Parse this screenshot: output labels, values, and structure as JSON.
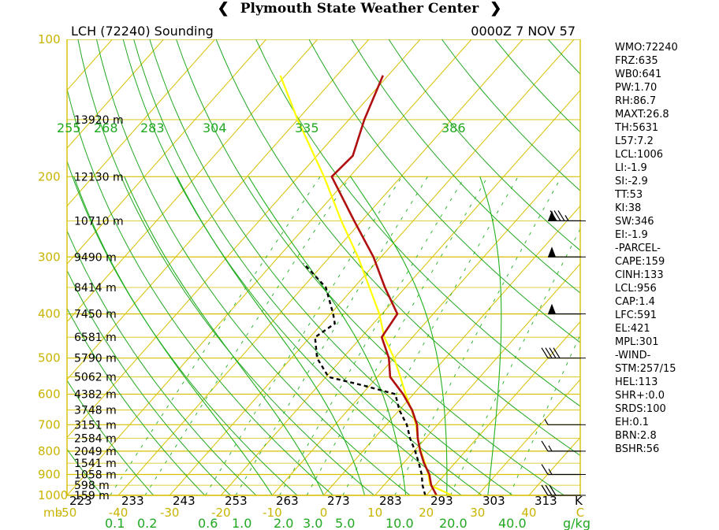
{
  "header": {
    "title": "Plymouth State Weather Center"
  },
  "plot": {
    "station": "LCH (72240) Sounding",
    "time": "0000Z  7 NOV 57",
    "theta_labels": [
      "255",
      "268",
      "283",
      "304",
      "335",
      "386"
    ],
    "pressure_unit": "mb",
    "theta_unit": "K",
    "mixing_unit": "g/kg",
    "mixing_labels": [
      "0.1",
      "0.2",
      "0.6",
      "1.0",
      "2.0",
      "3.0",
      "5.0",
      "10.0",
      "20.0",
      "40.0"
    ]
  },
  "indices": [
    "WMO:72240",
    "FRZ:635",
    "WB0:641",
    "PW:1.70",
    "RH:86.7",
    "MAXT:26.8",
    "TH:5631",
    "L57:7.2",
    "LCL:1006",
    "LI:-1.9",
    "SI:-2.9",
    "TT:53",
    "KI:38",
    "SW:346",
    "EI:-1.9",
    "-PARCEL-",
    "CAPE:159",
    "CINH:133",
    "LCL:956",
    "CAP:1.4",
    "LFC:591",
    "EL:421",
    "MPL:301",
    "-WIND-",
    "STM:257/15",
    "HEL:113",
    "SHR+:0.0",
    "SRDS:100",
    "EH:0.1",
    "BRN:2.8",
    "BSHR:56"
  ],
  "chart_data": {
    "type": "skew-t",
    "title": "LCH (72240) Sounding",
    "subtitle": "0000Z  7 NOV 57",
    "pressure_axis": {
      "unit": "mb",
      "range": [
        1000,
        100
      ],
      "scale": "log",
      "tick_labels": [
        100,
        200,
        300,
        400,
        500,
        600,
        700,
        800,
        900,
        1000
      ]
    },
    "temperature_axis": {
      "unit": "C",
      "range": [
        -50,
        50
      ],
      "tick_labels": [
        "-50",
        "-40",
        "-30",
        "-20",
        "-10",
        "0",
        "10",
        "20",
        "30",
        "40",
        "C"
      ]
    },
    "kelvin_labels": [
      "223",
      "233",
      "243",
      "253",
      "263",
      "273",
      "283",
      "293",
      "303",
      "313"
    ],
    "height_labels": [
      {
        "p": 150,
        "label": "13920 m"
      },
      {
        "p": 200,
        "label": "12130 m"
      },
      {
        "p": 250,
        "label": "10710 m"
      },
      {
        "p": 300,
        "label": "9490 m"
      },
      {
        "p": 350,
        "label": "8414 m"
      },
      {
        "p": 400,
        "label": "7450 m"
      },
      {
        "p": 450,
        "label": "6581 m"
      },
      {
        "p": 500,
        "label": "5790 m"
      },
      {
        "p": 550,
        "label": "5062 m"
      },
      {
        "p": 600,
        "label": "4382 m"
      },
      {
        "p": 650,
        "label": "3748 m"
      },
      {
        "p": 700,
        "label": "3151 m"
      },
      {
        "p": 750,
        "label": "2584 m"
      },
      {
        "p": 800,
        "label": "2049 m"
      },
      {
        "p": 850,
        "label": "1541 m"
      },
      {
        "p": 900,
        "label": "1058 m"
      },
      {
        "p": 950,
        "label": "598 m"
      },
      {
        "p": 1000,
        "label": "159 m"
      }
    ],
    "series": [
      {
        "name": "Temperature",
        "color": "#b01010",
        "points": [
          [
            1000,
            22.0
          ],
          [
            950,
            19.2
          ],
          [
            900,
            17.0
          ],
          [
            850,
            14.0
          ],
          [
            800,
            11.2
          ],
          [
            750,
            8.5
          ],
          [
            700,
            6.0
          ],
          [
            650,
            2.5
          ],
          [
            600,
            -2.0
          ],
          [
            550,
            -7.5
          ],
          [
            500,
            -11.0
          ],
          [
            450,
            -16.0
          ],
          [
            400,
            -17.0
          ],
          [
            350,
            -24.0
          ],
          [
            300,
            -31.5
          ],
          [
            250,
            -41.5
          ],
          [
            200,
            -53.5
          ],
          [
            180,
            -53.0
          ],
          [
            150,
            -57.0
          ],
          [
            120,
            -61.0
          ]
        ]
      },
      {
        "name": "Dewpoint",
        "color": "#000000",
        "points": [
          [
            1000,
            19.8
          ],
          [
            950,
            17.5
          ],
          [
            900,
            15.5
          ],
          [
            850,
            13.0
          ],
          [
            800,
            10.2
          ],
          [
            750,
            7.0
          ],
          [
            700,
            4.0
          ],
          [
            650,
            0.0
          ],
          [
            600,
            -3.5
          ],
          [
            575,
            -11.0
          ],
          [
            550,
            -19.5
          ],
          [
            500,
            -25.0
          ],
          [
            450,
            -29.0
          ],
          [
            420,
            -27.5
          ],
          [
            400,
            -29.5
          ],
          [
            350,
            -35.5
          ],
          [
            310,
            -44.0
          ]
        ]
      },
      {
        "name": "Parcel",
        "color": "#ffff00",
        "points": [
          [
            1000,
            25.0
          ],
          [
            950,
            19.0
          ],
          [
            900,
            16.8
          ],
          [
            850,
            14.2
          ],
          [
            800,
            11.3
          ],
          [
            750,
            8.5
          ],
          [
            700,
            5.8
          ],
          [
            650,
            2.4
          ],
          [
            600,
            -1.5
          ],
          [
            550,
            -5.5
          ],
          [
            500,
            -10.0
          ],
          [
            450,
            -15.5
          ],
          [
            400,
            -20.5
          ],
          [
            350,
            -27.0
          ],
          [
            300,
            -34.5
          ],
          [
            250,
            -44.0
          ],
          [
            200,
            -55.0
          ],
          [
            150,
            -70.0
          ],
          [
            120,
            -81.0
          ]
        ]
      }
    ],
    "winds": [
      {
        "p": 1000,
        "dir": 257,
        "kt": 30
      },
      {
        "p": 900,
        "dir": 250,
        "kt": 15
      },
      {
        "p": 800,
        "dir": 255,
        "kt": 15
      },
      {
        "p": 700,
        "dir": 270,
        "kt": 5
      },
      {
        "p": 500,
        "dir": 250,
        "kt": 40
      },
      {
        "p": 400,
        "dir": 255,
        "kt": 50
      },
      {
        "p": 300,
        "dir": 260,
        "kt": 50
      },
      {
        "p": 250,
        "dir": 250,
        "kt": 85
      }
    ],
    "grid": true
  }
}
